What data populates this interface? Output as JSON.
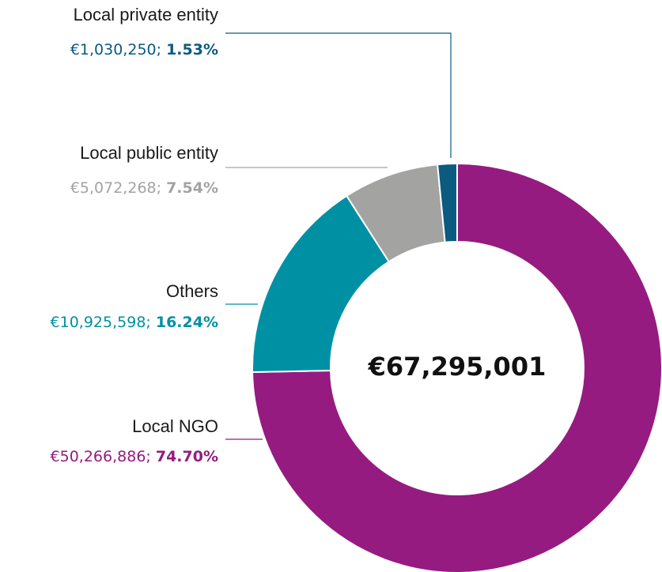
{
  "chart_data": {
    "type": "donut",
    "categories": [
      "Local NGO",
      "Others",
      "Local public entity",
      "Local private entity"
    ],
    "values": [
      50266886,
      10925598,
      5072268,
      1030250
    ],
    "value_labels": [
      "€50,266,886",
      "€10,925,598",
      "€5,072,268",
      "€1,030,250"
    ],
    "percentages": [
      74.7,
      16.24,
      7.54,
      1.53
    ],
    "percentage_labels": [
      "74.70%",
      "16.24%",
      "7.54%",
      "1.53%"
    ],
    "label_separator": "; ",
    "colors": [
      "#951b81",
      "#0090a4",
      "#a3a3a2",
      "#0b5a80"
    ],
    "total": 67295001,
    "total_label": "€67,295,001"
  }
}
